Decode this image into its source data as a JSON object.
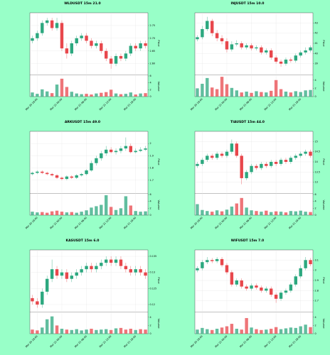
{
  "chart_data": [
    {
      "type": "candlestick",
      "title": "WLDUSDT 15m 21.0",
      "ylabel": "Price",
      "volume_label": "Volume",
      "up_color": "#2ca87f",
      "down_color": "#e8474c",
      "grid": true,
      "x": [
        null,
        "Mar 20 18:00",
        null,
        null,
        null,
        null,
        "Mar 21 00:00",
        null,
        null,
        null,
        null,
        "Mar 21 06:00",
        null,
        null,
        null,
        null,
        "Mar 21 12:00",
        null,
        null,
        null,
        null,
        "Mar 21 18:00",
        null,
        null
      ],
      "open": [
        2.69,
        2.7,
        2.72,
        2.76,
        2.77,
        2.74,
        2.76,
        2.66,
        2.64,
        2.68,
        2.7,
        2.71,
        2.69,
        2.67,
        2.68,
        2.65,
        2.62,
        2.6,
        2.63,
        2.62,
        2.64,
        2.67,
        2.66,
        2.68
      ],
      "high": [
        2.71,
        2.73,
        2.77,
        2.78,
        2.78,
        2.78,
        2.77,
        2.68,
        2.69,
        2.71,
        2.72,
        2.72,
        2.7,
        2.69,
        2.69,
        2.66,
        2.63,
        2.64,
        2.64,
        2.65,
        2.68,
        2.68,
        2.69,
        2.69
      ],
      "low": [
        2.68,
        2.69,
        2.71,
        2.75,
        2.73,
        2.73,
        2.65,
        2.62,
        2.63,
        2.67,
        2.69,
        2.68,
        2.66,
        2.66,
        2.64,
        2.61,
        2.58,
        2.59,
        2.61,
        2.61,
        2.63,
        2.65,
        2.65,
        2.66
      ],
      "close": [
        2.7,
        2.72,
        2.76,
        2.77,
        2.74,
        2.76,
        2.66,
        2.64,
        2.68,
        2.7,
        2.71,
        2.69,
        2.67,
        2.68,
        2.65,
        2.62,
        2.6,
        2.63,
        2.62,
        2.64,
        2.67,
        2.66,
        2.68,
        2.67
      ],
      "volume": [
        1.2,
        0.8,
        2.1,
        1.5,
        1.0,
        3.5,
        5.2,
        2.8,
        1.4,
        0.9,
        0.7,
        0.8,
        0.6,
        0.9,
        1.1,
        1.3,
        2.0,
        0.9,
        0.7,
        0.8,
        1.2,
        0.6,
        0.9,
        1.0
      ],
      "ylim": [
        2.56,
        2.8
      ],
      "yticks": [
        {
          "value": 2.6,
          "label": "2.60"
        },
        2.65,
        {
          "value": 2.7,
          "label": "2.70"
        },
        2.75
      ],
      "volume_ylim": [
        0,
        6
      ],
      "volume_yticks": [
        0,
        2,
        4,
        6
      ]
    },
    {
      "type": "candlestick",
      "title": "INJUSDT 15m 10.0",
      "ylabel": "Price",
      "volume_label": "Volume",
      "up_color": "#2ca87f",
      "down_color": "#e8474c",
      "grid": true,
      "x": [
        null,
        "Mar 20 18:00",
        null,
        null,
        null,
        null,
        "Mar 21 00:00",
        null,
        null,
        null,
        null,
        "Mar 21 06:00",
        null,
        null,
        null,
        null,
        "Mar 21 12:00",
        null,
        null,
        null,
        null,
        "Mar 21 18:00",
        null,
        null
      ],
      "open": [
        41.4,
        41.6,
        42.4,
        43.2,
        42.0,
        41.5,
        41.2,
        40.4,
        40.9,
        41.0,
        40.6,
        40.8,
        40.5,
        40.6,
        40.1,
        40.3,
        39.6,
        39.2,
        39.0,
        39.4,
        39.3,
        39.8,
        40.1,
        40.3
      ],
      "high": [
        41.8,
        42.7,
        43.6,
        43.4,
        42.3,
        41.8,
        41.5,
        41.2,
        41.3,
        41.2,
        41.0,
        41.0,
        40.8,
        40.8,
        40.5,
        40.5,
        39.8,
        39.4,
        39.6,
        39.6,
        40.0,
        40.3,
        40.6,
        40.8
      ],
      "low": [
        41.2,
        41.4,
        42.2,
        41.7,
        41.2,
        40.9,
        40.1,
        40.2,
        40.7,
        40.4,
        40.4,
        40.3,
        40.3,
        39.9,
        39.9,
        39.4,
        39.0,
        38.7,
        38.8,
        39.1,
        39.1,
        39.6,
        39.9,
        40.1
      ],
      "close": [
        41.6,
        42.4,
        43.2,
        42.0,
        41.5,
        41.2,
        40.4,
        40.9,
        41.0,
        40.6,
        40.8,
        40.5,
        40.6,
        40.1,
        40.3,
        39.6,
        39.2,
        39.0,
        39.4,
        39.3,
        39.8,
        40.1,
        40.3,
        40.6
      ],
      "volume": [
        2.0,
        3.1,
        4.5,
        2.2,
        1.8,
        4.8,
        3.0,
        2.1,
        1.5,
        1.0,
        1.2,
        0.9,
        1.3,
        1.1,
        1.0,
        1.4,
        4.0,
        1.8,
        1.2,
        1.0,
        1.3,
        1.1,
        1.5,
        1.6
      ],
      "ylim": [
        38,
        44
      ],
      "yticks": [
        39,
        40,
        41,
        42,
        43
      ],
      "volume_ylim": [
        0,
        5
      ],
      "volume_yticks": [
        0,
        2,
        4
      ]
    },
    {
      "type": "candlestick",
      "title": "ARKUSDT 15m 49.0",
      "ylabel": "Price",
      "volume_label": "Volume",
      "up_color": "#2ca87f",
      "down_color": "#e8474c",
      "grid": true,
      "x": [
        null,
        "Mar 20 18:00",
        null,
        null,
        null,
        null,
        "Mar 21 00:00",
        null,
        null,
        null,
        null,
        "Mar 21 06:00",
        null,
        null,
        null,
        null,
        "Mar 21 12:00",
        null,
        null,
        null,
        null,
        "Mar 21 18:00",
        null,
        null
      ],
      "open": [
        1.75,
        1.76,
        1.77,
        1.76,
        1.75,
        1.74,
        1.72,
        1.71,
        1.73,
        1.72,
        1.74,
        1.75,
        1.78,
        1.84,
        1.88,
        1.92,
        1.95,
        1.93,
        1.94,
        1.96,
        1.98,
        1.93,
        1.94,
        1.95
      ],
      "high": [
        1.77,
        1.78,
        1.78,
        1.77,
        1.76,
        1.75,
        1.73,
        1.74,
        1.74,
        1.75,
        1.76,
        1.79,
        1.86,
        1.9,
        1.94,
        1.98,
        1.97,
        1.96,
        1.98,
        2.05,
        2.0,
        1.96,
        1.97,
        1.98
      ],
      "low": [
        1.74,
        1.75,
        1.75,
        1.74,
        1.73,
        1.71,
        1.7,
        1.7,
        1.71,
        1.71,
        1.73,
        1.74,
        1.77,
        1.82,
        1.86,
        1.9,
        1.92,
        1.91,
        1.92,
        1.94,
        1.92,
        1.92,
        1.93,
        1.94
      ],
      "close": [
        1.76,
        1.77,
        1.76,
        1.75,
        1.74,
        1.72,
        1.71,
        1.73,
        1.72,
        1.74,
        1.75,
        1.78,
        1.84,
        1.88,
        1.92,
        1.95,
        1.93,
        1.94,
        1.96,
        1.98,
        1.93,
        1.94,
        1.95,
        1.96
      ],
      "volume": [
        1.0,
        0.8,
        0.9,
        0.7,
        1.1,
        1.3,
        1.0,
        0.8,
        0.9,
        0.7,
        1.0,
        1.4,
        2.2,
        2.6,
        3.0,
        5.8,
        2.4,
        1.5,
        2.0,
        5.5,
        2.8,
        1.2,
        1.0,
        1.1
      ],
      "ylim": [
        1.6,
        2.1
      ],
      "yticks": [
        1.7,
        1.8,
        1.9,
        2.0
      ],
      "volume_ylim": [
        0,
        6
      ],
      "volume_yticks": [
        0,
        2,
        4,
        6
      ]
    },
    {
      "type": "candlestick",
      "title": "TIAUSDT 15m 44.0",
      "ylabel": "Price",
      "volume_label": "Volume",
      "up_color": "#2ca87f",
      "down_color": "#e8474c",
      "grid": true,
      "x": [
        null,
        "Mar 20 18:00",
        null,
        null,
        null,
        null,
        "Mar 21 00:00",
        null,
        null,
        null,
        null,
        "Mar 21 06:00",
        null,
        null,
        null,
        null,
        "Mar 21 12:00",
        null,
        null,
        null,
        null,
        "Mar 21 18:00",
        null,
        null
      ],
      "open": [
        13.8,
        13.9,
        14.1,
        14.3,
        14.2,
        14.4,
        14.3,
        14.5,
        14.9,
        14.3,
        13.2,
        13.5,
        13.8,
        13.7,
        13.9,
        13.8,
        14.0,
        13.9,
        14.1,
        14.0,
        14.2,
        14.3,
        14.4,
        14.5
      ],
      "high": [
        14.0,
        14.2,
        14.4,
        14.4,
        14.5,
        14.5,
        14.6,
        15.1,
        15.0,
        14.4,
        13.6,
        13.9,
        13.9,
        14.0,
        14.0,
        14.1,
        14.1,
        14.2,
        14.2,
        14.3,
        14.4,
        14.5,
        14.6,
        14.6
      ],
      "low": [
        13.7,
        13.8,
        14.0,
        14.1,
        14.1,
        14.2,
        14.2,
        14.4,
        14.2,
        12.9,
        13.1,
        13.4,
        13.6,
        13.6,
        13.7,
        13.7,
        13.8,
        13.8,
        13.9,
        13.9,
        14.1,
        14.2,
        14.3,
        14.2
      ],
      "close": [
        13.9,
        14.1,
        14.3,
        14.2,
        14.4,
        14.3,
        14.5,
        14.9,
        14.3,
        13.2,
        13.5,
        13.8,
        13.7,
        13.9,
        13.8,
        14.0,
        13.9,
        14.1,
        14.0,
        14.2,
        14.3,
        14.4,
        14.5,
        14.3
      ],
      "volume": [
        3.2,
        1.5,
        1.2,
        1.0,
        1.4,
        1.1,
        1.6,
        2.5,
        3.4,
        5.0,
        2.2,
        1.4,
        1.2,
        1.0,
        1.3,
        0.9,
        1.1,
        1.0,
        0.8,
        1.2,
        1.1,
        1.3,
        1.0,
        0.9
      ],
      "ylim": [
        12.5,
        15.5
      ],
      "yticks": [
        13,
        13.5,
        14,
        14.5,
        15
      ],
      "volume_ylim": [
        0,
        6
      ],
      "volume_yticks": [
        0,
        2,
        4,
        6
      ]
    },
    {
      "type": "candlestick",
      "title": "KASUSDT 15m 6.0",
      "ylabel": "Price",
      "volume_label": "Volume",
      "up_color": "#2ca87f",
      "down_color": "#e8474c",
      "grid": true,
      "x": [
        null,
        "Mar 20 18:00",
        null,
        null,
        null,
        null,
        "Mar 21 00:00",
        null,
        null,
        null,
        null,
        "Mar 21 06:00",
        null,
        null,
        null,
        null,
        "Mar 21 12:00",
        null,
        null,
        null,
        null,
        "Mar 21 18:00",
        null,
        null
      ],
      "open": [
        0.122,
        0.121,
        0.12,
        0.124,
        0.128,
        0.131,
        0.129,
        0.13,
        0.128,
        0.129,
        0.13,
        0.131,
        0.132,
        0.131,
        0.132,
        0.133,
        0.134,
        0.133,
        0.134,
        0.132,
        0.131,
        0.13,
        0.131,
        0.13
      ],
      "high": [
        0.123,
        0.122,
        0.125,
        0.129,
        0.134,
        0.132,
        0.131,
        0.131,
        0.13,
        0.131,
        0.132,
        0.133,
        0.133,
        0.133,
        0.134,
        0.135,
        0.135,
        0.135,
        0.135,
        0.133,
        0.132,
        0.132,
        0.132,
        0.131
      ],
      "low": [
        0.12,
        0.119,
        0.119,
        0.123,
        0.127,
        0.128,
        0.128,
        0.127,
        0.127,
        0.128,
        0.129,
        0.13,
        0.13,
        0.13,
        0.131,
        0.132,
        0.132,
        0.132,
        0.131,
        0.13,
        0.129,
        0.129,
        0.129,
        0.128
      ],
      "close": [
        0.121,
        0.12,
        0.124,
        0.128,
        0.131,
        0.129,
        0.13,
        0.128,
        0.129,
        0.13,
        0.131,
        0.132,
        0.131,
        0.132,
        0.133,
        0.134,
        0.133,
        0.134,
        0.132,
        0.131,
        0.13,
        0.131,
        0.13,
        0.129
      ],
      "volume": [
        1.0,
        0.8,
        1.5,
        3.5,
        4.2,
        2.0,
        1.2,
        1.0,
        0.9,
        1.1,
        0.8,
        1.0,
        1.2,
        0.9,
        1.0,
        1.1,
        0.9,
        1.3,
        1.4,
        1.0,
        1.2,
        0.9,
        1.1,
        1.0
      ],
      "ylim": [
        0.118,
        0.137
      ],
      "yticks": [
        0.12,
        0.125,
        0.13,
        0.135
      ],
      "volume_ylim": [
        0,
        5
      ],
      "volume_yticks": [
        0,
        2,
        4
      ]
    },
    {
      "type": "candlestick",
      "title": "WIFUSDT 15m 7.0",
      "ylabel": "Price",
      "volume_label": "Volume",
      "up_color": "#2ca87f",
      "down_color": "#e8474c",
      "grid": true,
      "x": [
        null,
        "Mar 20 18:00",
        null,
        null,
        null,
        null,
        "Mar 21 00:00",
        null,
        null,
        null,
        null,
        "Mar 21 06:00",
        null,
        null,
        null,
        null,
        "Mar 21 12:00",
        null,
        null,
        null,
        null,
        "Mar 21 18:00",
        null,
        null
      ],
      "open": [
        3.0,
        3.02,
        3.08,
        3.1,
        3.09,
        3.11,
        3.05,
        2.98,
        2.86,
        2.9,
        2.84,
        2.82,
        2.85,
        2.83,
        2.8,
        2.82,
        2.76,
        2.72,
        2.78,
        2.8,
        2.86,
        2.94,
        3.02,
        3.1
      ],
      "high": [
        3.04,
        3.1,
        3.13,
        3.12,
        3.13,
        3.13,
        3.07,
        3.0,
        2.92,
        2.92,
        2.86,
        2.87,
        2.87,
        2.85,
        2.84,
        2.84,
        2.78,
        2.8,
        2.82,
        2.88,
        2.96,
        3.05,
        3.13,
        3.12
      ],
      "low": [
        2.98,
        3.0,
        3.06,
        3.07,
        3.07,
        3.03,
        2.96,
        2.84,
        2.84,
        2.82,
        2.8,
        2.8,
        2.81,
        2.78,
        2.78,
        2.74,
        2.68,
        2.7,
        2.76,
        2.78,
        2.84,
        2.92,
        3.0,
        3.04
      ],
      "close": [
        3.02,
        3.08,
        3.1,
        3.09,
        3.11,
        3.05,
        2.98,
        2.86,
        2.9,
        2.84,
        2.82,
        2.85,
        2.83,
        2.8,
        2.82,
        2.76,
        2.72,
        2.78,
        2.8,
        2.86,
        2.94,
        3.02,
        3.1,
        3.06
      ],
      "volume": [
        1.0,
        1.4,
        1.1,
        0.9,
        1.2,
        1.5,
        1.8,
        2.4,
        1.2,
        1.0,
        3.8,
        1.5,
        1.1,
        0.9,
        1.0,
        1.2,
        1.6,
        1.1,
        1.3,
        1.5,
        1.4,
        1.8,
        2.2,
        1.6
      ],
      "ylim": [
        2.6,
        3.2
      ],
      "yticks": [
        2.7,
        2.8,
        2.9,
        3.0,
        3.1
      ],
      "volume_ylim": [
        0,
        5
      ],
      "volume_yticks": [
        0,
        2,
        4
      ]
    }
  ]
}
